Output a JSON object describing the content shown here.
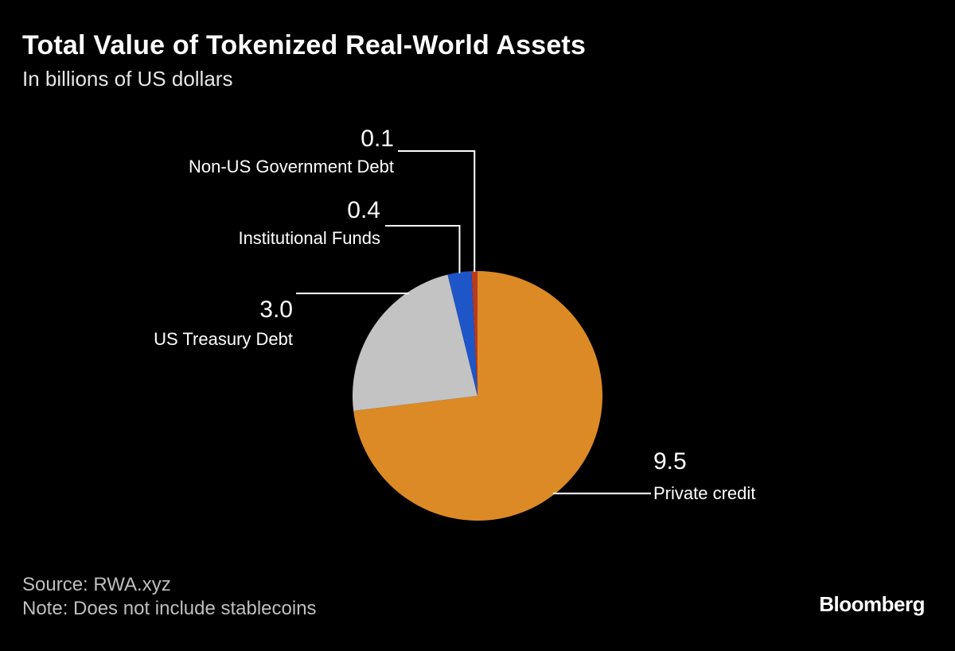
{
  "header": {
    "title": "Total Value of Tokenized Real-World Assets",
    "subtitle": "In billions of US dollars"
  },
  "footer": {
    "source": "Source: RWA.xyz",
    "note": "Note: Does not include stablecoins",
    "brand": "Bloomberg"
  },
  "chart_data": {
    "type": "pie",
    "title": "Total Value of Tokenized Real-World Assets",
    "subtitle": "In billions of US dollars",
    "unit": "billions of US dollars",
    "start_angle": "12 o'clock",
    "direction": "clockwise",
    "legend": "none (direct labels)",
    "slices": [
      {
        "label": "Private credit",
        "value": 9.5,
        "display_value": "9.5",
        "color": "#DB8A25"
      },
      {
        "label": "US Treasury Debt",
        "value": 3.0,
        "display_value": "3.0",
        "color": "#C3C3C3"
      },
      {
        "label": "Institutional Funds",
        "value": 0.4,
        "display_value": "0.4",
        "color": "#1E56C8"
      },
      {
        "label": "Non-US Government Debt",
        "value": 0.1,
        "display_value": "0.1",
        "color": "#B93A1F"
      }
    ]
  }
}
